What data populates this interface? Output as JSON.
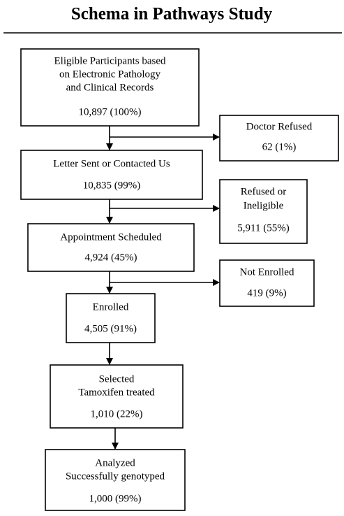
{
  "title": "Schema in Pathways Study",
  "nodes": [
    {
      "lines": [
        "Eligible Participants based",
        "on Electronic Pathology",
        "and Clinical Records"
      ],
      "count": "10,897 (100%)"
    },
    {
      "lines": [
        "Doctor Refused"
      ],
      "count": "62 (1%)"
    },
    {
      "lines": [
        "Letter Sent or Contacted Us"
      ],
      "count": "10,835 (99%)"
    },
    {
      "lines": [
        "Refused or",
        "Ineligible"
      ],
      "count": "5,911 (55%)"
    },
    {
      "lines": [
        "Appointment Scheduled"
      ],
      "count": "4,924 (45%)"
    },
    {
      "lines": [
        "Not Enrolled"
      ],
      "count": "419 (9%)"
    },
    {
      "lines": [
        "Enrolled"
      ],
      "count": "4,505 (91%)"
    },
    {
      "lines": [
        "Selected",
        "Tamoxifen treated"
      ],
      "count": "1,010 (22%)"
    },
    {
      "lines": [
        "Analyzed",
        "Successfully genotyped"
      ],
      "count": "1,000 (99%)"
    }
  ]
}
